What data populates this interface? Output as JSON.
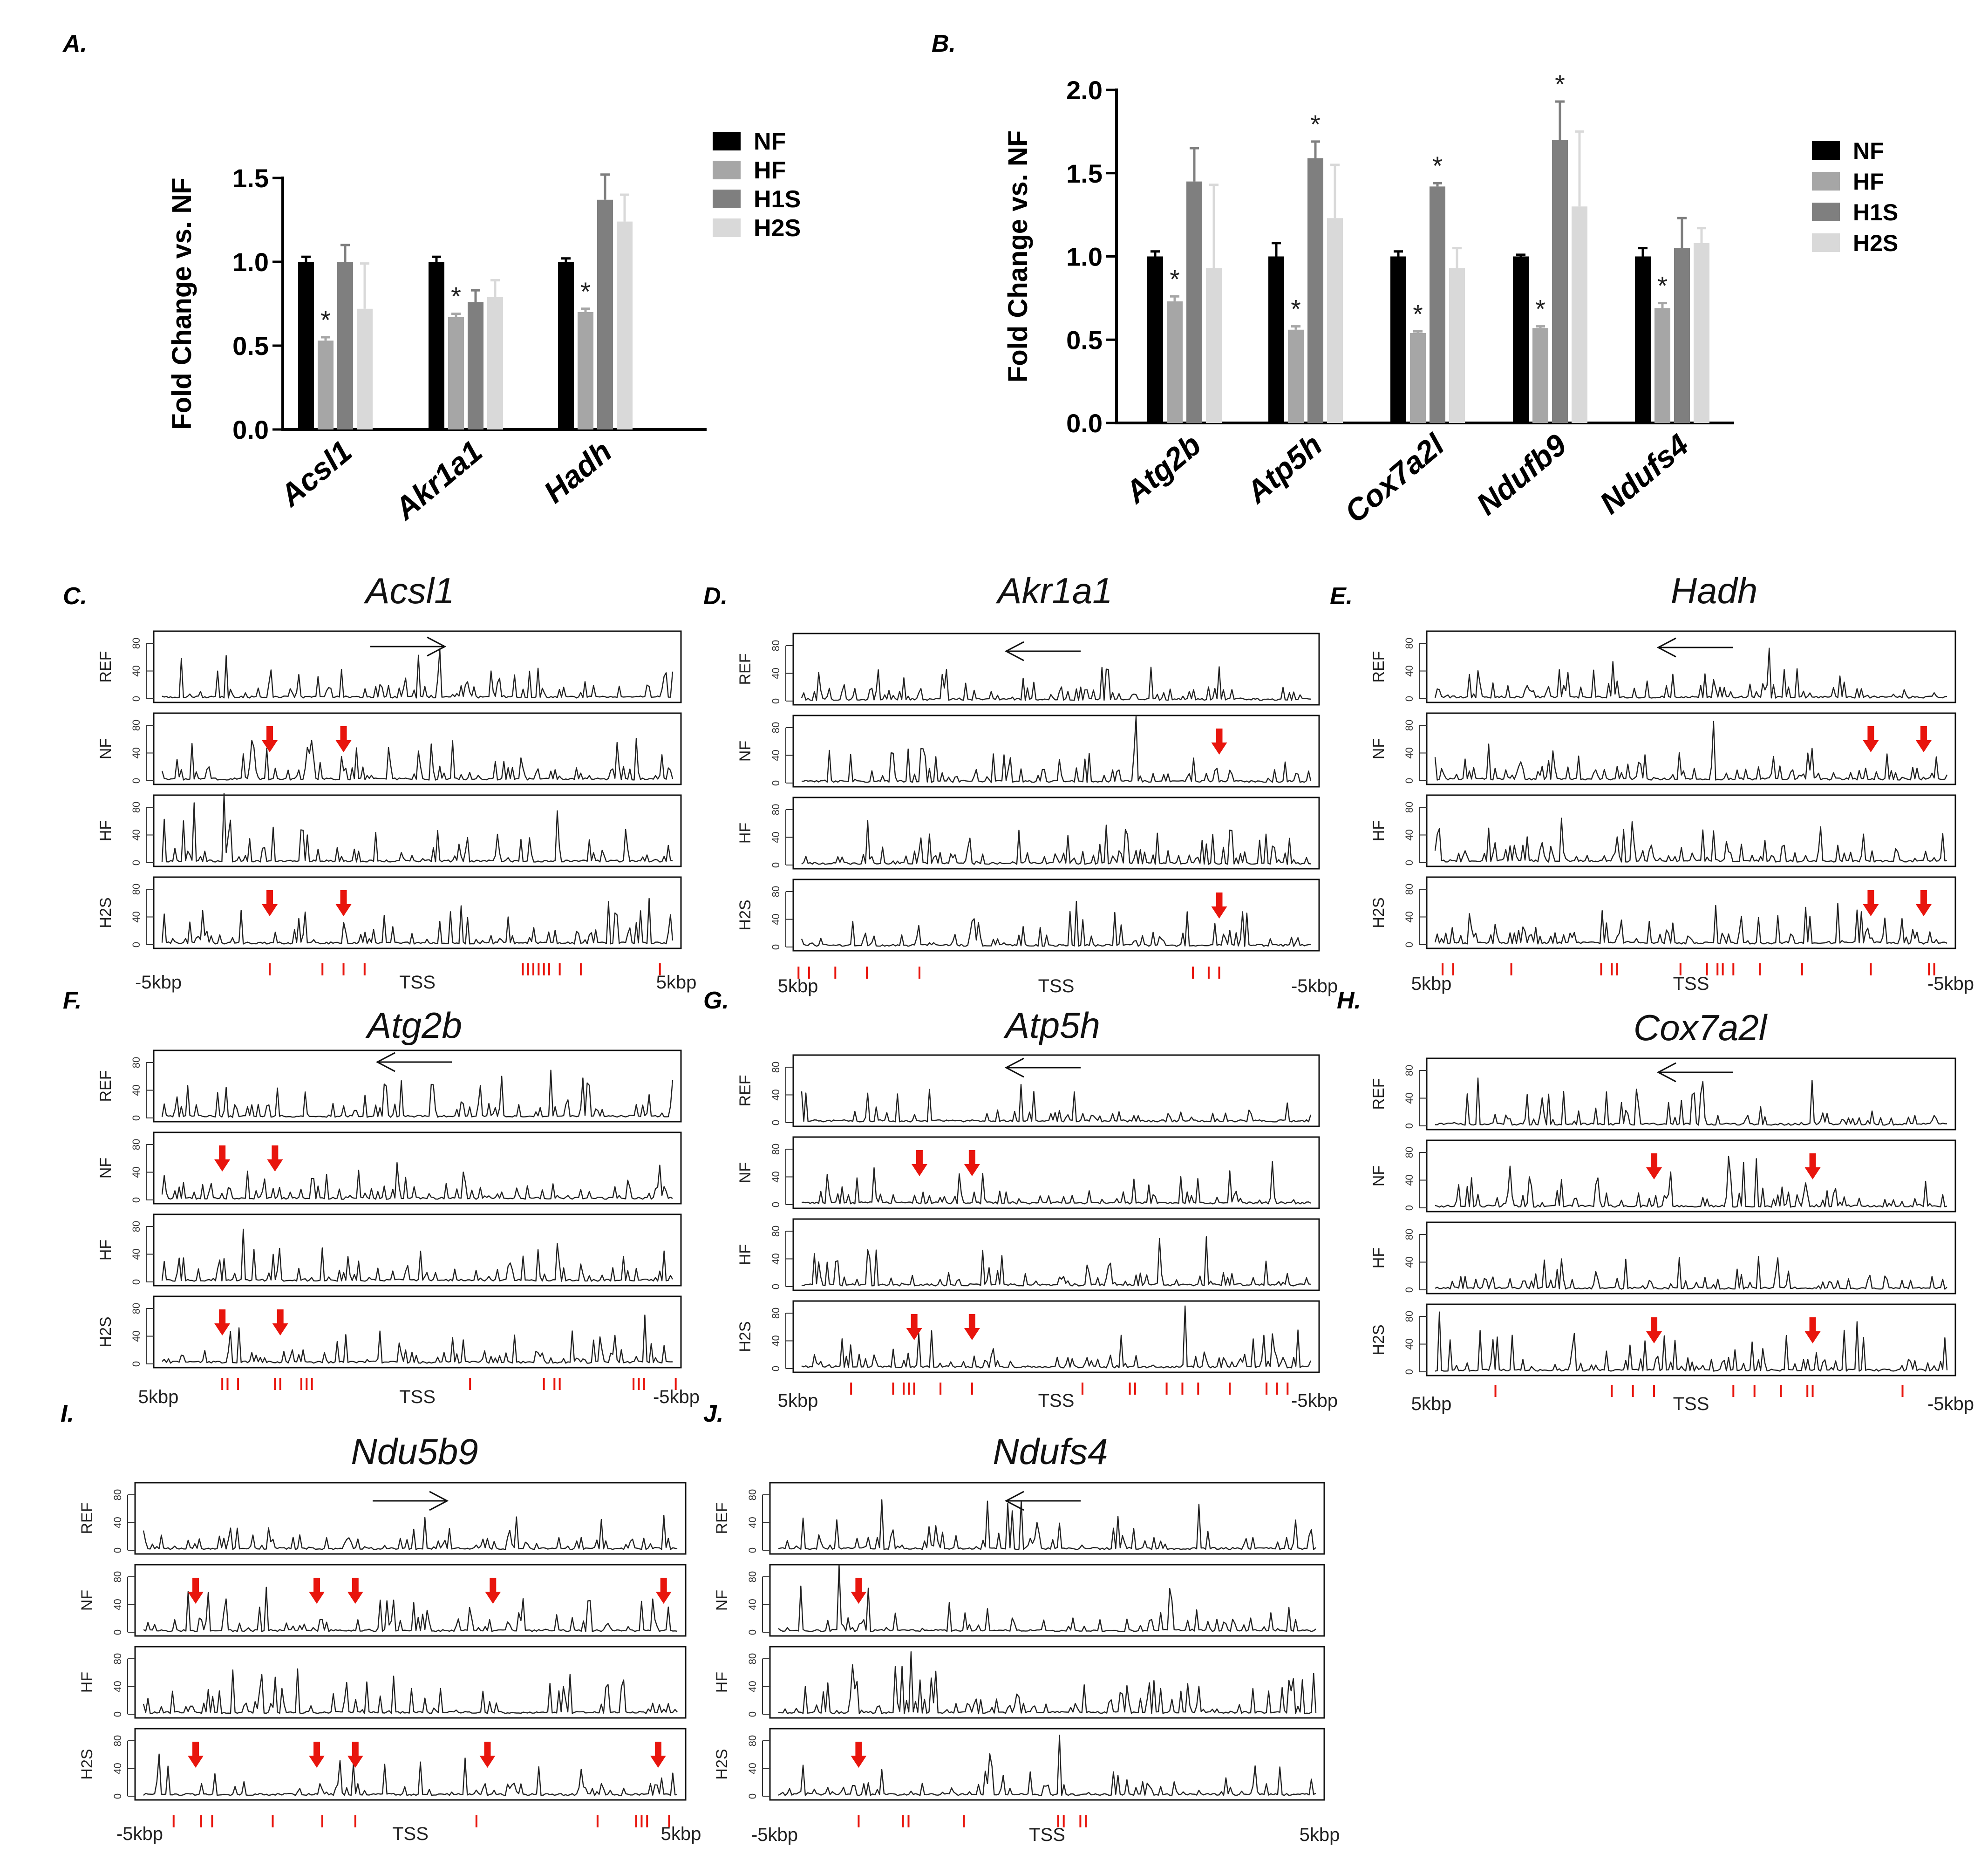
{
  "figure": {
    "panel_letters": [
      "A.",
      "B.",
      "C.",
      "D.",
      "E.",
      "F.",
      "G.",
      "H.",
      "I.",
      "J."
    ],
    "colors": {
      "NF": "#000000",
      "HF": "#a6a6a6",
      "H1S": "#7f7f7f",
      "H2S": "#d9d9d9",
      "arrow": "#e8150d",
      "line": "#222222"
    }
  },
  "chart_data": [
    {
      "type": "bar",
      "panel": "A.",
      "ylabel": "Fold Change vs. NF",
      "ylim": [
        0,
        1.5
      ],
      "yticks": [
        "0.0",
        "0.5",
        "1.0",
        "1.5"
      ],
      "categories": [
        "Acsl1",
        "Akr1a1",
        "Hadh"
      ],
      "legend": [
        "NF",
        "HF",
        "H1S",
        "H2S"
      ],
      "series": [
        {
          "name": "NF",
          "values": [
            1.0,
            1.0,
            1.0
          ],
          "errors": [
            0.03,
            0.03,
            0.02
          ]
        },
        {
          "name": "HF",
          "values": [
            0.53,
            0.67,
            0.7
          ],
          "errors": [
            0.02,
            0.02,
            0.02
          ]
        },
        {
          "name": "H1S",
          "values": [
            1.0,
            0.76,
            1.37
          ],
          "errors": [
            0.1,
            0.07,
            0.15
          ]
        },
        {
          "name": "H2S",
          "values": [
            0.72,
            0.79,
            1.24
          ],
          "errors": [
            0.27,
            0.1,
            0.16
          ]
        }
      ],
      "significance": [
        {
          "category": 0,
          "series": "HF",
          "label": "*"
        },
        {
          "category": 1,
          "series": "HF",
          "label": "*"
        },
        {
          "category": 2,
          "series": "HF",
          "label": "*"
        }
      ]
    },
    {
      "type": "bar",
      "panel": "B.",
      "ylabel": "Fold Change vs. NF",
      "ylim": [
        0,
        2.0
      ],
      "yticks": [
        "0.0",
        "0.5",
        "1.0",
        "1.5",
        "2.0"
      ],
      "categories": [
        "Atg2b",
        "Atp5h",
        "Cox7a2l",
        "Ndufb9",
        "Ndufs4"
      ],
      "legend": [
        "NF",
        "HF",
        "H1S",
        "H2S"
      ],
      "series": [
        {
          "name": "NF",
          "values": [
            1.0,
            1.0,
            1.0,
            1.0,
            1.0
          ],
          "errors": [
            0.03,
            0.08,
            0.03,
            0.01,
            0.05
          ]
        },
        {
          "name": "HF",
          "values": [
            0.73,
            0.56,
            0.54,
            0.57,
            0.69
          ],
          "errors": [
            0.03,
            0.02,
            0.01,
            0.01,
            0.03
          ]
        },
        {
          "name": "H1S",
          "values": [
            1.45,
            1.59,
            1.42,
            1.7,
            1.05
          ],
          "errors": [
            0.2,
            0.1,
            0.02,
            0.23,
            0.18
          ]
        },
        {
          "name": "H2S",
          "values": [
            0.93,
            1.23,
            0.93,
            1.3,
            1.08
          ],
          "errors": [
            0.5,
            0.32,
            0.12,
            0.45,
            0.09
          ]
        }
      ],
      "significance": [
        {
          "category": 0,
          "series": "HF",
          "label": "*"
        },
        {
          "category": 1,
          "series": "HF",
          "label": "*"
        },
        {
          "category": 1,
          "series": "H1S",
          "label": "*"
        },
        {
          "category": 2,
          "series": "HF",
          "label": "*"
        },
        {
          "category": 2,
          "series": "H1S",
          "label": "*"
        },
        {
          "category": 3,
          "series": "HF",
          "label": "*"
        },
        {
          "category": 3,
          "series": "H1S",
          "label": "*"
        },
        {
          "category": 4,
          "series": "HF",
          "label": "*"
        }
      ]
    },
    {
      "type": "line",
      "panel": "C.",
      "title": "Acsl1",
      "tracks": [
        "REF",
        "NF",
        "HF",
        "H2S"
      ],
      "yticks": [
        "0",
        "40",
        "80"
      ],
      "xlabels": [
        "-5kbp",
        "TSS",
        "5kbp"
      ],
      "direction": "right",
      "arrows": {
        "NF": [
          0.22,
          0.36
        ],
        "H2S": [
          0.22,
          0.36
        ]
      },
      "snps": [
        0.22,
        0.32,
        0.36,
        0.4,
        0.7,
        0.71,
        0.72,
        0.73,
        0.74,
        0.75,
        0.77,
        0.81,
        0.96
      ]
    },
    {
      "type": "line",
      "panel": "D.",
      "title": "Akr1a1",
      "tracks": [
        "REF",
        "NF",
        "HF",
        "H2S"
      ],
      "yticks": [
        "0",
        "40",
        "80"
      ],
      "xlabels": [
        "5kbp",
        "TSS",
        "-5kbp"
      ],
      "direction": "left",
      "arrows": {
        "NF": [
          0.81
        ],
        "H2S": [
          0.81
        ]
      },
      "snps": [
        0.01,
        0.03,
        0.08,
        0.14,
        0.24,
        0.76,
        0.79,
        0.81
      ]
    },
    {
      "type": "line",
      "panel": "E.",
      "title": "Hadh",
      "tracks": [
        "REF",
        "NF",
        "HF",
        "H2S"
      ],
      "yticks": [
        "0",
        "40",
        "80"
      ],
      "xlabels": [
        "5kbp",
        "TSS",
        "-5kbp"
      ],
      "direction": "left",
      "arrows": {
        "NF": [
          0.84,
          0.94
        ],
        "H2S": [
          0.84,
          0.94
        ]
      },
      "snps": [
        0.03,
        0.05,
        0.16,
        0.33,
        0.35,
        0.36,
        0.48,
        0.53,
        0.55,
        0.56,
        0.58,
        0.63,
        0.71,
        0.84,
        0.95,
        0.96
      ]
    },
    {
      "type": "line",
      "panel": "F.",
      "title": "Atg2b",
      "tracks": [
        "REF",
        "NF",
        "HF",
        "H2S"
      ],
      "yticks": [
        "0",
        "40",
        "80"
      ],
      "xlabels": [
        "5kbp",
        "TSS",
        "-5kbp"
      ],
      "direction": "left",
      "arrows": {
        "NF": [
          0.13,
          0.23
        ],
        "H2S": [
          0.13,
          0.24
        ]
      },
      "snps": [
        0.13,
        0.14,
        0.16,
        0.23,
        0.24,
        0.28,
        0.29,
        0.3,
        0.6,
        0.74,
        0.76,
        0.77,
        0.91,
        0.92,
        0.93,
        0.99
      ]
    },
    {
      "type": "line",
      "panel": "G.",
      "title": "Atp5h",
      "tracks": [
        "REF",
        "NF",
        "HF",
        "H2S"
      ],
      "yticks": [
        "0",
        "40",
        "80"
      ],
      "xlabels": [
        "5kbp",
        "TSS",
        "-5kbp"
      ],
      "direction": "left",
      "arrows": {
        "NF": [
          0.24,
          0.34
        ],
        "H2S": [
          0.23,
          0.34
        ]
      },
      "snps": [
        0.11,
        0.19,
        0.21,
        0.22,
        0.23,
        0.28,
        0.34,
        0.55,
        0.64,
        0.65,
        0.71,
        0.74,
        0.77,
        0.83,
        0.9,
        0.92,
        0.94
      ]
    },
    {
      "type": "line",
      "panel": "H.",
      "title": "Cox7a2l",
      "tracks": [
        "REF",
        "NF",
        "HF",
        "H2S"
      ],
      "yticks": [
        "0",
        "40",
        "80"
      ],
      "xlabels": [
        "5kbp",
        "TSS",
        "-5kbp"
      ],
      "direction": "left",
      "arrows": {
        "NF": [
          0.43,
          0.73
        ],
        "H2S": [
          0.43,
          0.73
        ]
      },
      "snps": [
        0.13,
        0.35,
        0.39,
        0.43,
        0.58,
        0.62,
        0.67,
        0.72,
        0.73,
        0.9
      ]
    },
    {
      "type": "line",
      "panel": "I.",
      "title": "Ndu5b9",
      "tracks": [
        "REF",
        "NF",
        "HF",
        "H2S"
      ],
      "yticks": [
        "0",
        "40",
        "80"
      ],
      "xlabels": [
        "-5kbp",
        "TSS",
        "5kbp"
      ],
      "direction": "right",
      "arrows": {
        "NF": [
          0.11,
          0.33,
          0.4,
          0.65,
          0.96
        ],
        "H2S": [
          0.11,
          0.33,
          0.4,
          0.64,
          0.95
        ]
      },
      "snps": [
        0.07,
        0.12,
        0.14,
        0.25,
        0.34,
        0.4,
        0.62,
        0.84,
        0.91,
        0.92,
        0.93,
        0.97
      ]
    },
    {
      "type": "line",
      "panel": "J.",
      "title": "Ndufs4",
      "tracks": [
        "REF",
        "NF",
        "HF",
        "H2S"
      ],
      "yticks": [
        "0",
        "40",
        "80"
      ],
      "xlabels": [
        "-5kbp",
        "TSS",
        "5kbp"
      ],
      "direction": "left",
      "arrows": {
        "NF": [
          0.16
        ],
        "H2S": [
          0.16
        ]
      },
      "snps": [
        0.16,
        0.24,
        0.25,
        0.35,
        0.52,
        0.53,
        0.56,
        0.57
      ]
    }
  ]
}
